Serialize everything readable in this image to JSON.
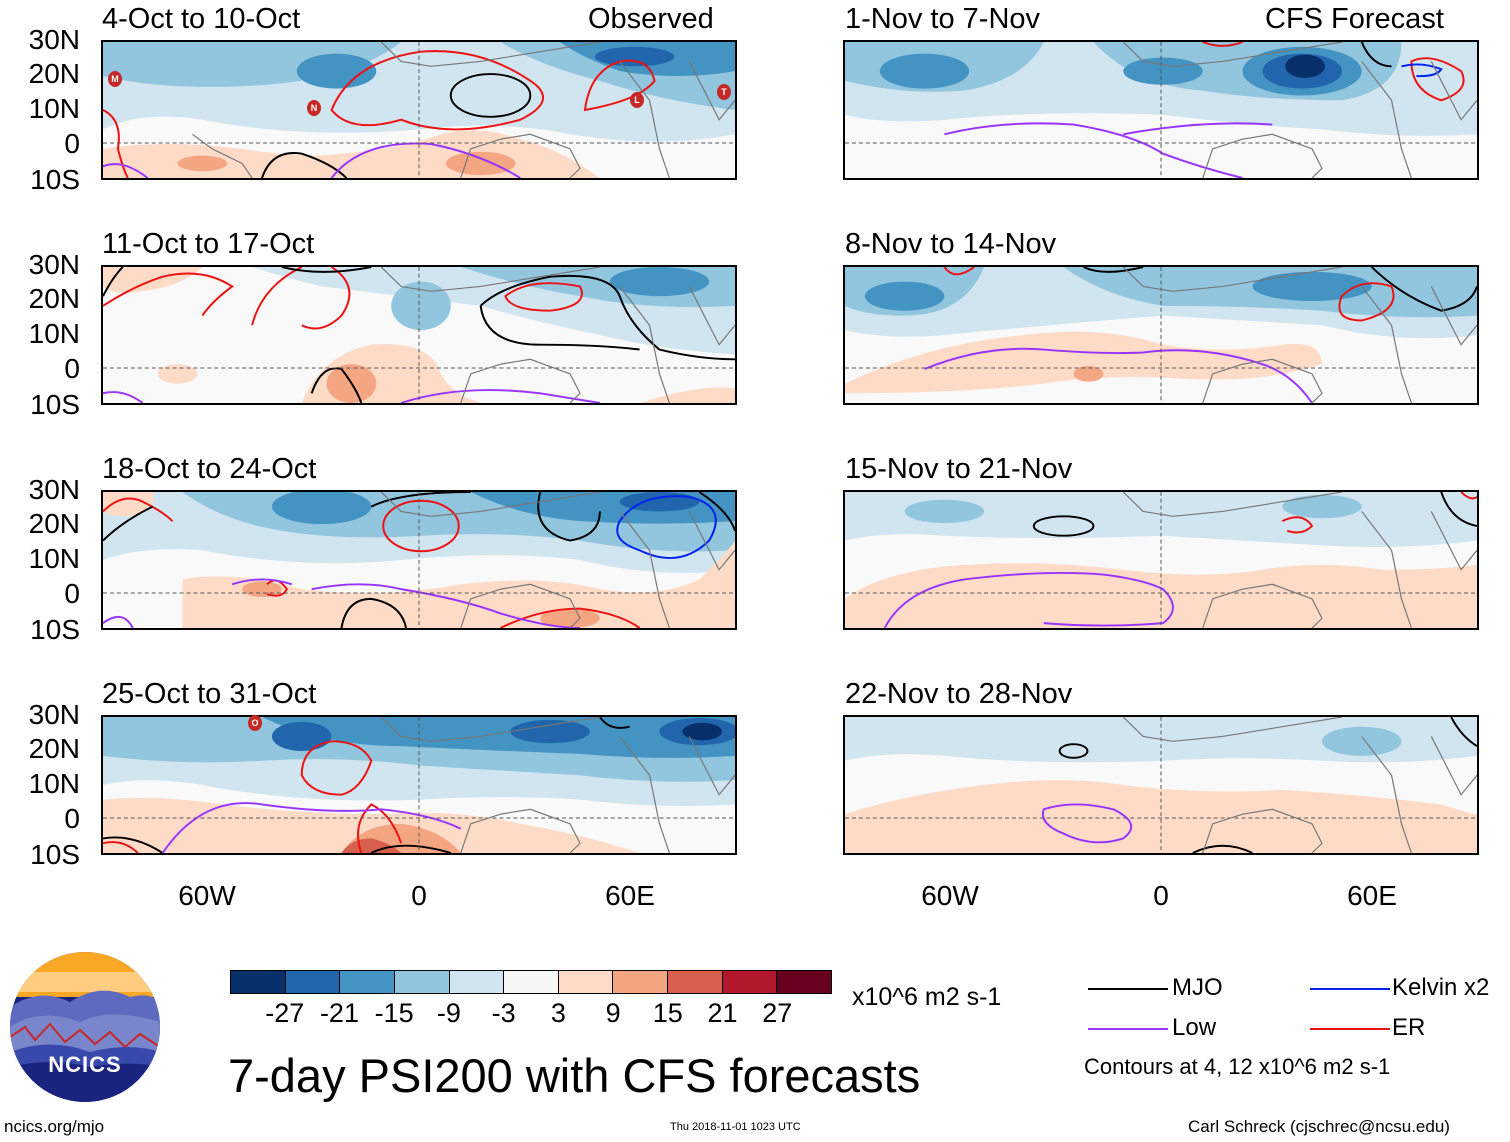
{
  "panels_left": [
    {
      "title": "4-Oct to 10-Oct",
      "tag": "Observed"
    },
    {
      "title": "11-Oct to 17-Oct",
      "tag": ""
    },
    {
      "title": "18-Oct to 24-Oct",
      "tag": ""
    },
    {
      "title": "25-Oct to 31-Oct",
      "tag": ""
    }
  ],
  "panels_right": [
    {
      "title": "1-Nov to 7-Nov",
      "tag": "CFS Forecast"
    },
    {
      "title": "8-Nov to 14-Nov",
      "tag": ""
    },
    {
      "title": "15-Nov to 21-Nov",
      "tag": ""
    },
    {
      "title": "22-Nov to 28-Nov",
      "tag": ""
    }
  ],
  "lat_labels": [
    "30N",
    "20N",
    "10N",
    "0",
    "10S"
  ],
  "lon_labels": [
    "60W",
    "0",
    "60E"
  ],
  "storm_markers": [
    "M",
    "N",
    "L",
    "T",
    "O"
  ],
  "colorbar": {
    "colors": [
      "#08306b",
      "#2166ac",
      "#4393c3",
      "#92c5de",
      "#d1e5f0",
      "#f7f7f7",
      "#fddbc7",
      "#f4a582",
      "#d6604d",
      "#b2182b",
      "#67001f"
    ],
    "ticks": [
      "-27",
      "-21",
      "-15",
      "-9",
      "-3",
      "3",
      "9",
      "15",
      "21",
      "27"
    ],
    "units": "x10^6 m2 s-1"
  },
  "legend": {
    "mjo": "MJO",
    "low": "Low",
    "kelvin": "Kelvin x2",
    "er": "ER",
    "mjo_color": "#000000",
    "low_color": "#9933ff",
    "kelvin_color": "#0022ee",
    "er_color": "#ee1111",
    "contours_note": "Contours at 4, 12 x10^6 m2 s-1"
  },
  "main_title": "7-day PSI200 with CFS forecasts",
  "logo_text": "NCICS",
  "footer": {
    "site": "ncics.org/mjo",
    "timestamp": "Thu 2018-11-01 1023 UTC",
    "author": "Carl Schreck (cjschrec@ncsu.edu)"
  }
}
